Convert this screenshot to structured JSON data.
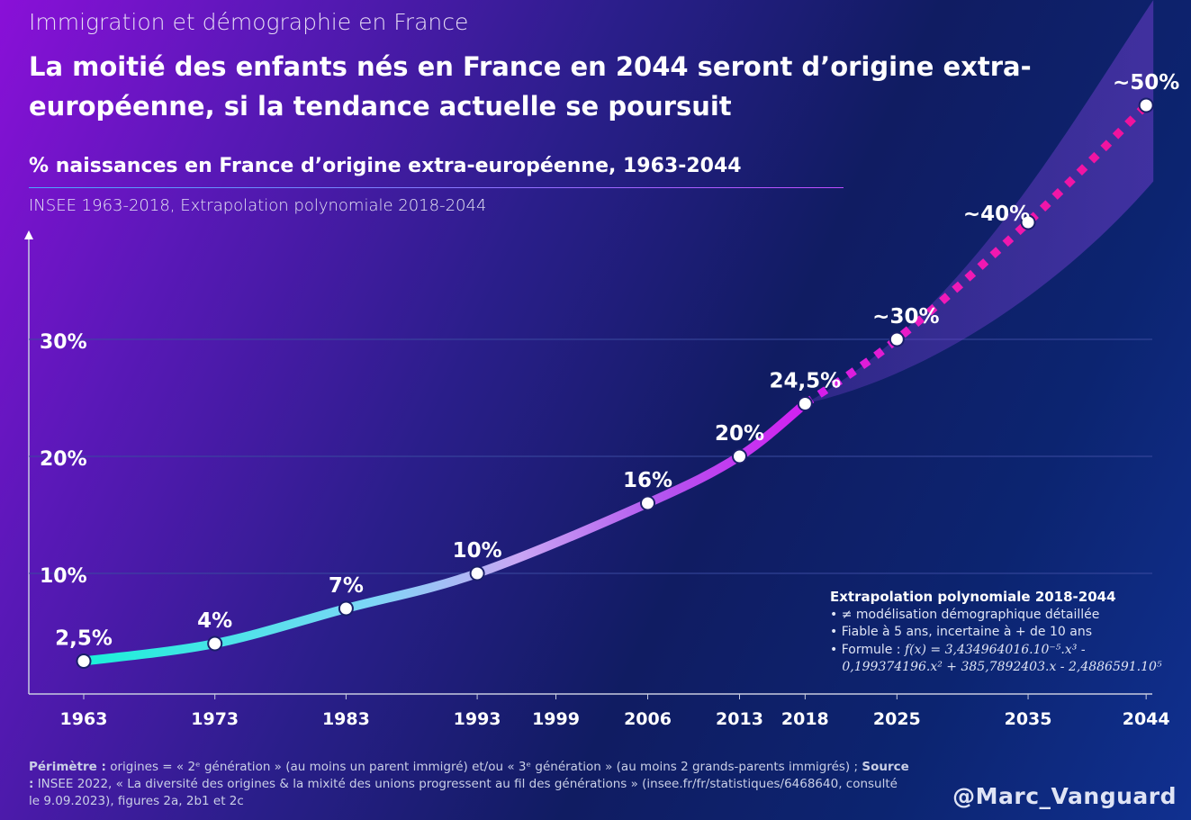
{
  "header": {
    "kicker": "Immigration et démographie en France",
    "headline": "La moitié des enfants nés en France en 2044 seront d’origine extra-européenne, si la tendance actuelle se poursuit",
    "subtitle": "% naissances en France d’origine extra-européenne, 1963-2044",
    "source_line": "INSEE 1963-2018, Extrapolation polynomiale 2018-2044"
  },
  "chart_data": {
    "type": "line",
    "title": "% naissances en France d’origine extra-européenne, 1963-2044",
    "x_ticks": [
      "1963",
      "1973",
      "1983",
      "1993",
      "1999",
      "2006",
      "2013",
      "2018",
      "2025",
      "2035",
      "2044"
    ],
    "y_ticks": [
      "10%",
      "20%",
      "30%"
    ],
    "ylim": [
      0,
      55
    ],
    "grid": "horizontal",
    "series": [
      {
        "segment": "observed",
        "source": "INSEE",
        "color_start": "#19f0d8",
        "color_end": "#d020f0",
        "points": [
          {
            "x": 1963,
            "y": 2.5,
            "label": "2,5%"
          },
          {
            "x": 1973,
            "y": 4,
            "label": "4%"
          },
          {
            "x": 1983,
            "y": 7,
            "label": "7%"
          },
          {
            "x": 1993,
            "y": 10,
            "label": "10%"
          },
          {
            "x": 2006,
            "y": 16,
            "label": "16%"
          },
          {
            "x": 2013,
            "y": 20,
            "label": "20%"
          },
          {
            "x": 2018,
            "y": 24.5,
            "label": "24,5%"
          }
        ]
      },
      {
        "segment": "extrapolation",
        "style": "dotted",
        "color": "#f0129a",
        "points": [
          {
            "x": 2018,
            "y": 24.5,
            "label": ""
          },
          {
            "x": 2025,
            "y": 30,
            "label": "~30%"
          },
          {
            "x": 2035,
            "y": 40,
            "label": "~40%"
          },
          {
            "x": 2044,
            "y": 50,
            "label": "~50%"
          }
        ]
      }
    ]
  },
  "note": {
    "title": "Extrapolation polynomiale 2018-2044",
    "bullets": [
      "≠ modélisation démographique détaillée",
      "Fiable à 5 ans, incertaine à + de 10 ans"
    ],
    "formula_label": "Formule :",
    "formula_line1": "f(x) = 3,434964016.10⁻⁵.x³ -",
    "formula_line2": "0,199374196.x² + 385,7892403.x - 2,4886591.10⁵"
  },
  "footer": {
    "perimetre_label": "Périmètre :",
    "perimetre_text": " origines = « 2ᵉ génération » (au moins un parent immigré) et/ou « 3ᵉ génération » (au moins 2 grands-parents immigrés) ; ",
    "source_label": "Source :",
    "source_text": " INSEE 2022, « La diversité des origines & la mixité des unions progressent au fil des générations » (insee.fr/fr/statistiques/6468640, consulté le 9.09.2023), figures 2a, 2b1 et 2c"
  },
  "handle": "@Marc_Vanguard"
}
